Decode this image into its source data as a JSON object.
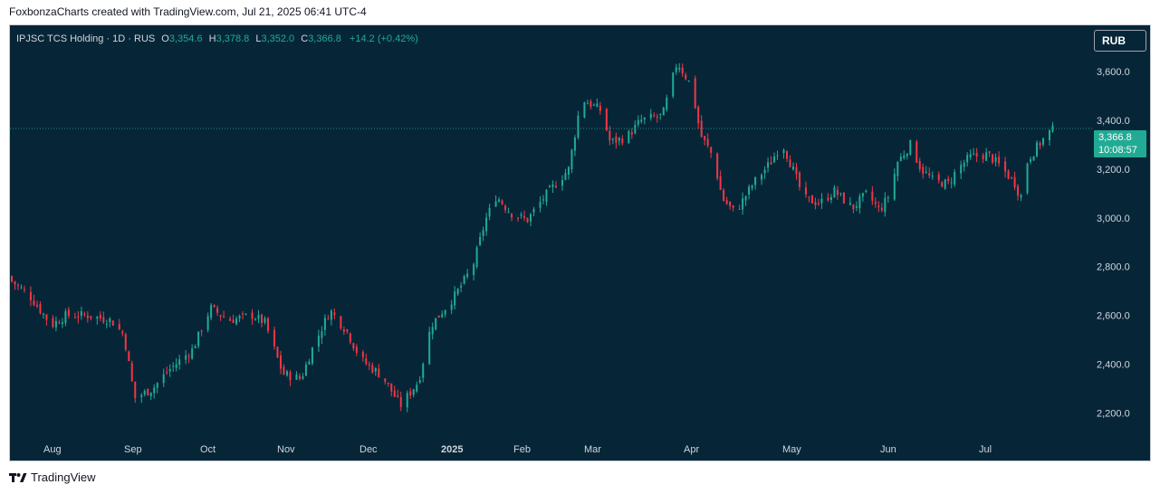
{
  "attribution": "FoxbonzaCharts created with TradingView.com, Jul 21, 2025 06:41 UTC-4",
  "legend": {
    "symbol": "IPJSC TCS Holding · 1D · RUS",
    "o_label": "O",
    "o_value": "3,354.6",
    "h_label": "H",
    "h_value": "3,378.8",
    "l_label": "L",
    "l_value": "3,352.0",
    "c_label": "C",
    "c_value": "3,366.8",
    "change": "+14.2 (+0.42%)"
  },
  "currency_button": "RUB",
  "price_badge": {
    "price": "3,366.8",
    "countdown": "10:08:57"
  },
  "footer_brand": "TradingView",
  "colors": {
    "up": "#22ab94",
    "down": "#f23645",
    "background": "#062638",
    "axis_text": "#d1d4dc"
  },
  "chart_data": {
    "type": "candlestick",
    "timeframe": "1D",
    "currency": "RUB",
    "y_ticks": [
      2200,
      2400,
      2600,
      2800,
      3000,
      3200,
      3400,
      3600
    ],
    "y_tick_labels": [
      "2,200.0",
      "2,400.0",
      "2,600.0",
      "2,800.0",
      "3,000.0",
      "3,200.0",
      "3,400.0",
      "3,600.0"
    ],
    "ylim": [
      2090,
      3790
    ],
    "x_labels": [
      "Aug",
      "Sep",
      "Oct",
      "Nov",
      "Dec",
      "2025",
      "Feb",
      "Mar",
      "Apr",
      "May",
      "Jun",
      "Jul"
    ],
    "last_price": 3366.8,
    "close_path": [
      [
        0,
        2740
      ],
      [
        10,
        2680
      ],
      [
        22,
        2560
      ],
      [
        30,
        2600
      ],
      [
        42,
        2600
      ],
      [
        55,
        2580
      ],
      [
        62,
        2520
      ],
      [
        68,
        2260
      ],
      [
        78,
        2300
      ],
      [
        86,
        2370
      ],
      [
        100,
        2460
      ],
      [
        110,
        2630
      ],
      [
        120,
        2580
      ],
      [
        133,
        2600
      ],
      [
        140,
        2570
      ],
      [
        150,
        2360
      ],
      [
        160,
        2340
      ],
      [
        166,
        2460
      ],
      [
        176,
        2620
      ],
      [
        185,
        2540
      ],
      [
        193,
        2420
      ],
      [
        205,
        2350
      ],
      [
        215,
        2230
      ],
      [
        225,
        2330
      ],
      [
        232,
        2560
      ],
      [
        245,
        2680
      ],
      [
        255,
        2800
      ],
      [
        262,
        2990
      ],
      [
        268,
        3090
      ],
      [
        276,
        3020
      ],
      [
        285,
        2990
      ],
      [
        295,
        3090
      ],
      [
        308,
        3200
      ],
      [
        315,
        3490
      ],
      [
        326,
        3440
      ],
      [
        331,
        3310
      ],
      [
        340,
        3330
      ],
      [
        348,
        3400
      ],
      [
        360,
        3420
      ],
      [
        368,
        3640
      ],
      [
        376,
        3540
      ],
      [
        381,
        3340
      ],
      [
        388,
        3250
      ],
      [
        393,
        3080
      ],
      [
        400,
        3020
      ],
      [
        410,
        3140
      ],
      [
        420,
        3230
      ],
      [
        426,
        3310
      ],
      [
        432,
        3200
      ],
      [
        438,
        3080
      ],
      [
        447,
        3060
      ],
      [
        455,
        3110
      ],
      [
        465,
        3040
      ],
      [
        473,
        3100
      ],
      [
        480,
        3030
      ],
      [
        485,
        3090
      ],
      [
        490,
        3230
      ],
      [
        497,
        3300
      ],
      [
        503,
        3200
      ],
      [
        510,
        3150
      ],
      [
        518,
        3140
      ],
      [
        523,
        3200
      ],
      [
        530,
        3250
      ],
      [
        540,
        3260
      ],
      [
        547,
        3210
      ],
      [
        555,
        3140
      ],
      [
        558,
        3080
      ],
      [
        562,
        3240
      ],
      [
        569,
        3310
      ],
      [
        574,
        3352
      ],
      [
        577,
        3366.8
      ]
    ]
  }
}
